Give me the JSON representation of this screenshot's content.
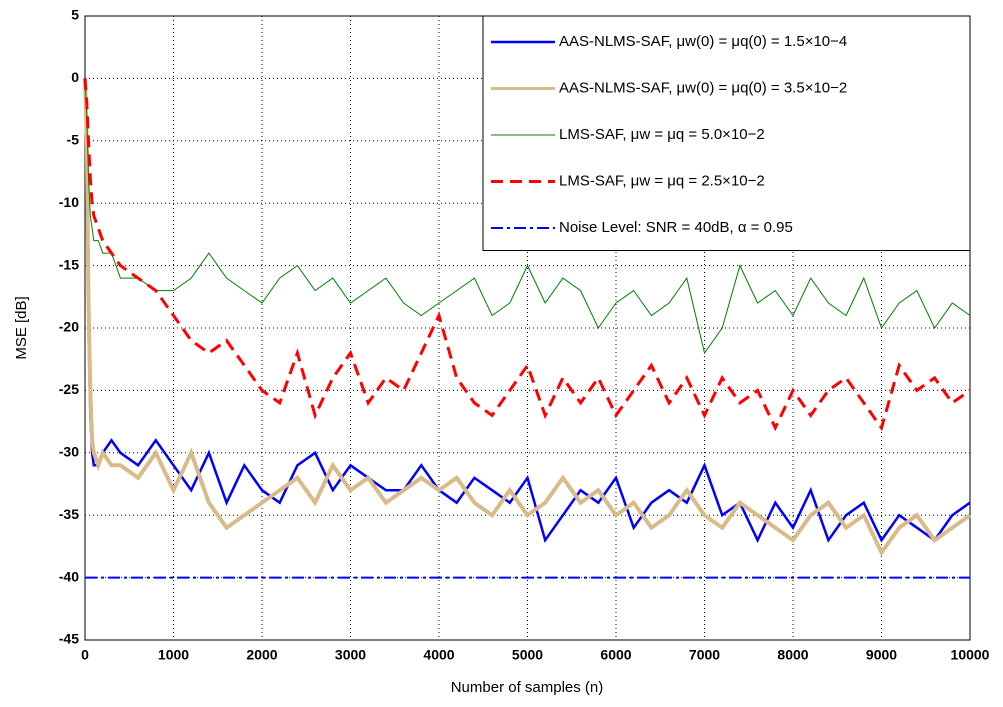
{
  "chart_data": {
    "type": "line",
    "xlabel": "Number of samples (n)",
    "ylabel": "MSE [dB]",
    "x": [
      0,
      20,
      40,
      60,
      80,
      100,
      150,
      200,
      300,
      400,
      600,
      800,
      1000,
      1200,
      1400,
      1600,
      1800,
      2000,
      2200,
      2400,
      2600,
      2800,
      3000,
      3200,
      3400,
      3600,
      3800,
      4000,
      4200,
      4400,
      4600,
      4800,
      5000,
      5200,
      5400,
      5600,
      5800,
      6000,
      6200,
      6400,
      6600,
      6800,
      7000,
      7200,
      7400,
      7600,
      7800,
      8000,
      8200,
      8400,
      8600,
      8800,
      9000,
      9200,
      9400,
      9600,
      9800,
      10000
    ],
    "series": [
      {
        "name": "AAS-NLMS-SAF, μw(0) = μq(0) = 1.5×10−4",
        "color": "#0000ff",
        "width": 2.5,
        "dash": "solid",
        "values": [
          0,
          -8,
          -20,
          -27,
          -30,
          -31,
          -31,
          -30,
          -29,
          -30,
          -31,
          -29,
          -31,
          -33,
          -30,
          -34,
          -31,
          -33,
          -34,
          -31,
          -30,
          -33,
          -31,
          -32,
          -33,
          -33,
          -31,
          -33,
          -34,
          -32,
          -33,
          -34,
          -32,
          -37,
          -35,
          -33,
          -34,
          -32,
          -36,
          -34,
          -33,
          -34,
          -31,
          -35,
          -34,
          -37,
          -34,
          -36,
          -33,
          -37,
          -35,
          -34,
          -37,
          -35,
          -36,
          -37,
          -35,
          -34
        ]
      },
      {
        "name": "AAS-NLMS-SAF, μw(0) = μq(0) = 3.5×10−2",
        "color": "#d9bb8a",
        "width": 4,
        "dash": "solid",
        "values": [
          0,
          -5,
          -18,
          -25,
          -29,
          -30,
          -31,
          -30,
          -31,
          -31,
          -32,
          -30,
          -33,
          -30,
          -34,
          -36,
          -35,
          -34,
          -33,
          -32,
          -34,
          -31,
          -33,
          -32,
          -34,
          -33,
          -32,
          -33,
          -32,
          -34,
          -35,
          -33,
          -35,
          -34,
          -32,
          -34,
          -33,
          -35,
          -34,
          -36,
          -35,
          -33,
          -35,
          -36,
          -34,
          -35,
          -36,
          -37,
          -35,
          -34,
          -36,
          -35,
          -38,
          -36,
          -35,
          -37,
          -36,
          -35
        ]
      },
      {
        "name": "LMS-SAF, μw = μq = 5.0×10−2",
        "color": "#008000",
        "width": 1,
        "dash": "solid",
        "values": [
          0,
          -3,
          -8,
          -11,
          -12,
          -13,
          -13,
          -14,
          -14,
          -16,
          -16,
          -17,
          -17,
          -16,
          -14,
          -16,
          -17,
          -18,
          -16,
          -15,
          -17,
          -16,
          -18,
          -17,
          -16,
          -18,
          -19,
          -18,
          -17,
          -16,
          -19,
          -18,
          -15,
          -18,
          -16,
          -17,
          -20,
          -18,
          -17,
          -19,
          -18,
          -16,
          -22,
          -20,
          -15,
          -18,
          -17,
          -19,
          -16,
          -18,
          -19,
          -16,
          -20,
          -18,
          -17,
          -20,
          -18,
          -19
        ]
      },
      {
        "name": "LMS-SAF, μw = μq = 2.5×10−2",
        "color": "#ff0000",
        "width": 3,
        "dash": "dashed",
        "values": [
          0,
          -2,
          -5,
          -8,
          -10,
          -11,
          -12,
          -13,
          -14,
          -15,
          -16,
          -17,
          -19,
          -21,
          -22,
          -21,
          -23,
          -25,
          -26,
          -22,
          -27,
          -24,
          -22,
          -26,
          -24,
          -25,
          -22,
          -19,
          -24,
          -26,
          -27,
          -25,
          -23,
          -27,
          -24,
          -26,
          -24,
          -27,
          -25,
          -23,
          -26,
          -24,
          -27,
          -24,
          -26,
          -25,
          -28,
          -25,
          -27,
          -25,
          -24,
          -26,
          -28,
          -23,
          -25,
          -24,
          -26,
          -25
        ]
      },
      {
        "name": "Noise Level: SNR = 40dB, α = 0.95",
        "color": "#0000ff",
        "width": 2,
        "dash": "dashdot",
        "values": [
          -40,
          -40,
          -40,
          -40,
          -40,
          -40,
          -40,
          -40,
          -40,
          -40,
          -40,
          -40,
          -40,
          -40,
          -40,
          -40,
          -40,
          -40,
          -40,
          -40,
          -40,
          -40,
          -40,
          -40,
          -40,
          -40,
          -40,
          -40,
          -40,
          -40,
          -40,
          -40,
          -40,
          -40,
          -40,
          -40,
          -40,
          -40,
          -40,
          -40,
          -40,
          -40,
          -40,
          -40,
          -40,
          -40,
          -40,
          -40,
          -40,
          -40,
          -40,
          -40,
          -40,
          -40,
          -40,
          -40,
          -40,
          -40
        ]
      }
    ],
    "xlim": [
      0,
      10000
    ],
    "xticks": [
      0,
      1000,
      2000,
      3000,
      4000,
      5000,
      6000,
      7000,
      8000,
      9000,
      10000
    ],
    "ylim": [
      -45,
      5
    ],
    "yticks": [
      -45,
      -40,
      -35,
      -30,
      -25,
      -20,
      -15,
      -10,
      -5,
      0,
      5
    ],
    "grid": true,
    "legend": "upper right"
  }
}
